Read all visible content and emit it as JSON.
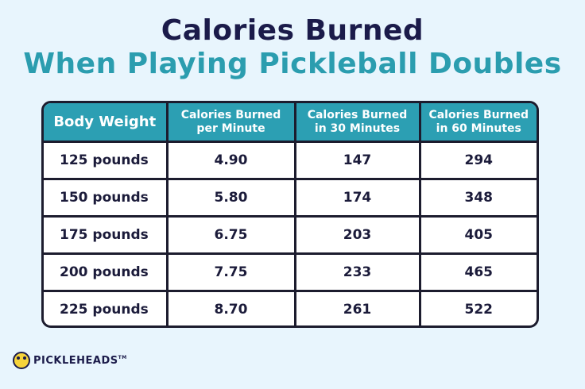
{
  "title": {
    "line1": "Calories Burned",
    "line2": "When Playing Pickleball Doubles"
  },
  "colors": {
    "background": "#e8f5fd",
    "title_dark": "#1b1b4a",
    "title_accent": "#2b9daf",
    "header_bg": "#2c9fb3",
    "border": "#1c1c2e"
  },
  "table": {
    "headers": [
      "Body Weight",
      "Calories Burned per Minute",
      "Calories Burned in 30 Minutes",
      "Calories Burned in 60 Minutes"
    ],
    "rows": [
      [
        "125 pounds",
        "4.90",
        "147",
        "294"
      ],
      [
        "150 pounds",
        "5.80",
        "174",
        "348"
      ],
      [
        "175 pounds",
        "6.75",
        "203",
        "405"
      ],
      [
        "200 pounds",
        "7.75",
        "233",
        "465"
      ],
      [
        "225 pounds",
        "8.70",
        "261",
        "522"
      ]
    ]
  },
  "logo": {
    "icon": "pickleball-face-icon",
    "text": "PICKLEHEADS",
    "trademark": "TM"
  }
}
